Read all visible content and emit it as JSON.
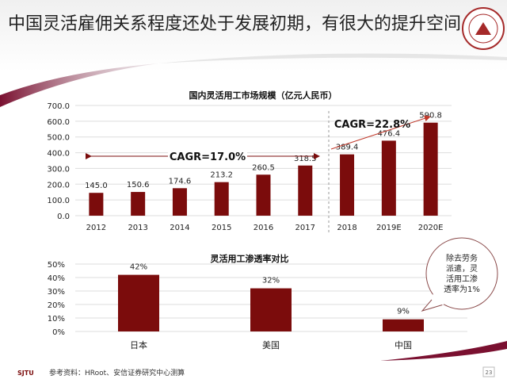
{
  "slide": {
    "title": "中国灵活雇佣关系程度还处于发展初期，有很大的提升空间",
    "logo_text": "SJTU",
    "source": "参考资料：HRoot、安信证券研究中心测算",
    "page_number": "23",
    "callout": [
      "除去劳务",
      "派遣，灵",
      "活用工渗",
      "透率为1%"
    ],
    "accent_color": "#7b0c0c"
  },
  "chart_data": [
    {
      "type": "bar",
      "title": "国内灵活用工市场规模（亿元人民币）",
      "categories": [
        "2012",
        "2013",
        "2014",
        "2015",
        "2016",
        "2017",
        "2018",
        "2019E",
        "2020E"
      ],
      "values": [
        145.0,
        150.6,
        174.6,
        213.2,
        260.5,
        318.5,
        389.4,
        476.4,
        590.8
      ],
      "data_labels": [
        "145.0",
        "150.6",
        "174.6",
        "213.2",
        "260.5",
        "318.5",
        "389.4",
        "476.4",
        "590.8"
      ],
      "ylim": [
        0,
        700
      ],
      "yticks": [
        "0.0",
        "100.0",
        "200.0",
        "300.0",
        "400.0",
        "500.0",
        "600.0",
        "700.0"
      ],
      "annotations": [
        "CAGR=17.0%",
        "CAGR=22.8%"
      ],
      "grid": true,
      "color": "#7b0c0c"
    },
    {
      "type": "bar",
      "title": "灵活用工渗透率对比",
      "categories": [
        "日本",
        "美国",
        "中国"
      ],
      "values": [
        42,
        32,
        9
      ],
      "data_labels": [
        "42%",
        "32%",
        "9%"
      ],
      "ylim": [
        0,
        50
      ],
      "yticks": [
        "0%",
        "10%",
        "20%",
        "30%",
        "40%",
        "50%"
      ],
      "grid": true,
      "color": "#7b0c0c"
    }
  ]
}
